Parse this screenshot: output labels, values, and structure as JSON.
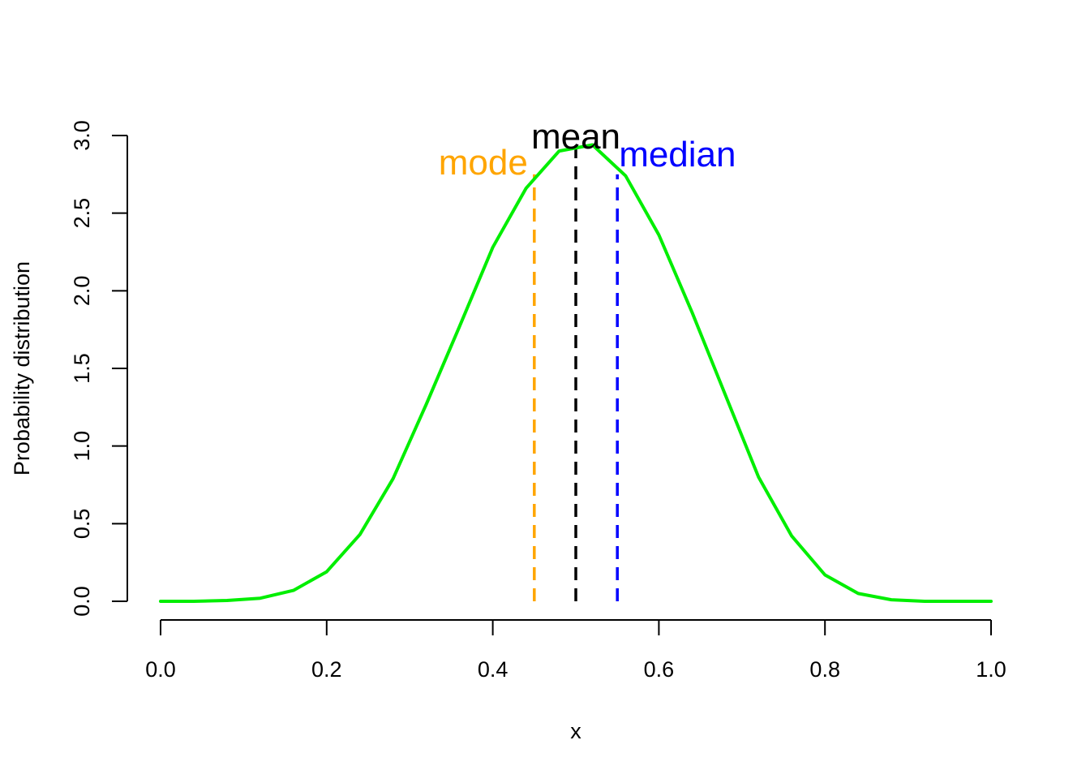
{
  "chart_data": {
    "type": "line",
    "title": "",
    "xlabel": "x",
    "ylabel": "Probability distribution",
    "xlim": [
      0,
      1
    ],
    "ylim": [
      0,
      3
    ],
    "x_ticks": [
      0.0,
      0.2,
      0.4,
      0.6,
      0.8,
      1.0
    ],
    "x_tick_labels": [
      "0.0",
      "0.2",
      "0.4",
      "0.6",
      "0.8",
      "1.0"
    ],
    "y_ticks": [
      0.0,
      0.5,
      1.0,
      1.5,
      2.0,
      2.5,
      3.0
    ],
    "y_tick_labels": [
      "0.0",
      "0.5",
      "1.0",
      "1.5",
      "2.0",
      "2.5",
      "3.0"
    ],
    "grid": false,
    "series": [
      {
        "color": "#00ee00",
        "x": [
          0.0,
          0.04,
          0.08,
          0.12,
          0.16,
          0.2,
          0.24,
          0.28,
          0.32,
          0.36,
          0.4,
          0.44,
          0.48,
          0.52,
          0.56,
          0.6,
          0.64,
          0.68,
          0.72,
          0.76,
          0.8,
          0.84,
          0.88,
          0.92,
          0.96,
          1.0
        ],
        "y": [
          0.0,
          0.0,
          0.005,
          0.02,
          0.07,
          0.19,
          0.43,
          0.79,
          1.27,
          1.77,
          2.28,
          2.66,
          2.9,
          2.94,
          2.74,
          2.36,
          1.86,
          1.33,
          0.8,
          0.42,
          0.17,
          0.05,
          0.01,
          0.0,
          0.0,
          0.0
        ]
      }
    ],
    "reference_lines": [
      {
        "label": "mode",
        "x": 0.45,
        "y_top": 2.75,
        "color": "#ffa500",
        "style": "dashed"
      },
      {
        "label": "mean",
        "x": 0.5,
        "y_top": 2.95,
        "color": "#000000",
        "style": "dashed"
      },
      {
        "label": "median",
        "x": 0.55,
        "y_top": 2.75,
        "color": "#0000ff",
        "style": "dashed"
      }
    ]
  }
}
